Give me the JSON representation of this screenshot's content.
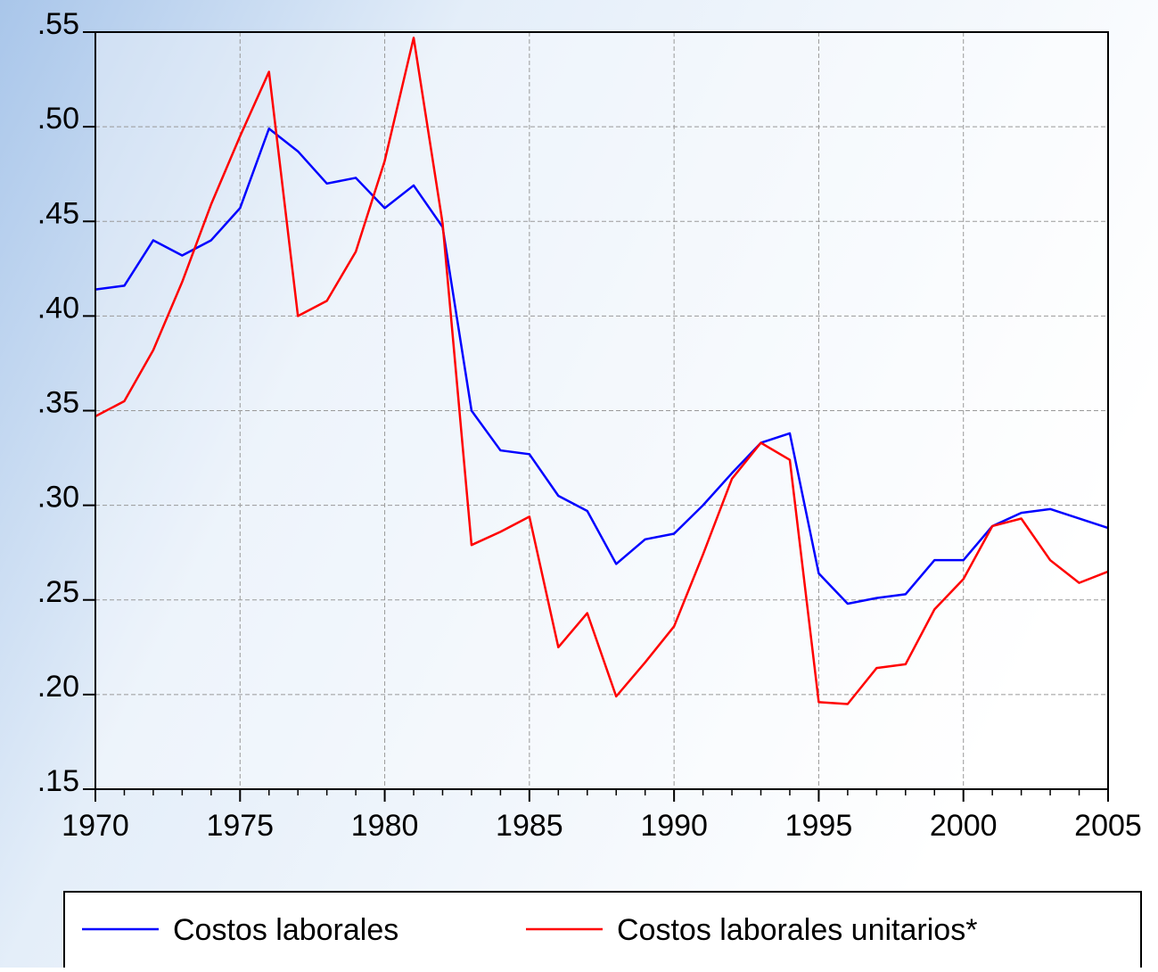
{
  "chart_data": {
    "type": "line",
    "x": [
      1970,
      1971,
      1972,
      1973,
      1974,
      1975,
      1976,
      1977,
      1978,
      1979,
      1980,
      1981,
      1982,
      1983,
      1984,
      1985,
      1986,
      1987,
      1988,
      1989,
      1990,
      1991,
      1992,
      1993,
      1994,
      1995,
      1996,
      1997,
      1998,
      1999,
      2000,
      2001,
      2002,
      2003,
      2004,
      2005
    ],
    "series": [
      {
        "name": "Costos laborales",
        "color": "#0000ff",
        "values": [
          0.414,
          0.416,
          0.44,
          0.432,
          0.44,
          0.457,
          0.499,
          0.487,
          0.47,
          0.473,
          0.457,
          0.469,
          0.447,
          0.35,
          0.329,
          0.327,
          0.305,
          0.297,
          0.269,
          0.282,
          0.285,
          0.3,
          0.317,
          0.333,
          0.338,
          0.264,
          0.248,
          0.251,
          0.253,
          0.271,
          0.271,
          0.289,
          0.296,
          0.298,
          0.293,
          0.288
        ]
      },
      {
        "name": "Costos laborales unitarios*",
        "color": "#ff0000",
        "values": [
          0.347,
          0.355,
          0.382,
          0.418,
          0.459,
          0.495,
          0.529,
          0.4,
          0.408,
          0.434,
          0.482,
          0.547,
          0.449,
          0.279,
          0.286,
          0.294,
          0.225,
          0.243,
          0.199,
          0.217,
          0.236,
          0.274,
          0.314,
          0.333,
          0.324,
          0.196,
          0.195,
          0.214,
          0.216,
          0.245,
          0.261,
          0.289,
          0.293,
          0.271,
          0.259,
          0.265
        ]
      }
    ],
    "xlim": [
      1970,
      2005
    ],
    "xticks": [
      1970,
      1975,
      1980,
      1985,
      1990,
      1995,
      2000,
      2005
    ],
    "ylim": [
      0.15,
      0.55
    ],
    "yticks": [
      {
        "value": 0.15,
        "label": ".15"
      },
      {
        "value": 0.2,
        "label": ".20"
      },
      {
        "value": 0.25,
        "label": ".25"
      },
      {
        "value": 0.3,
        "label": ".30"
      },
      {
        "value": 0.35,
        "label": ".35"
      },
      {
        "value": 0.4,
        "label": ".40"
      },
      {
        "value": 0.45,
        "label": ".45"
      },
      {
        "value": 0.5,
        "label": ".50"
      },
      {
        "value": 0.55,
        "label": ".55"
      }
    ],
    "grid": true,
    "legend": "bottom"
  }
}
